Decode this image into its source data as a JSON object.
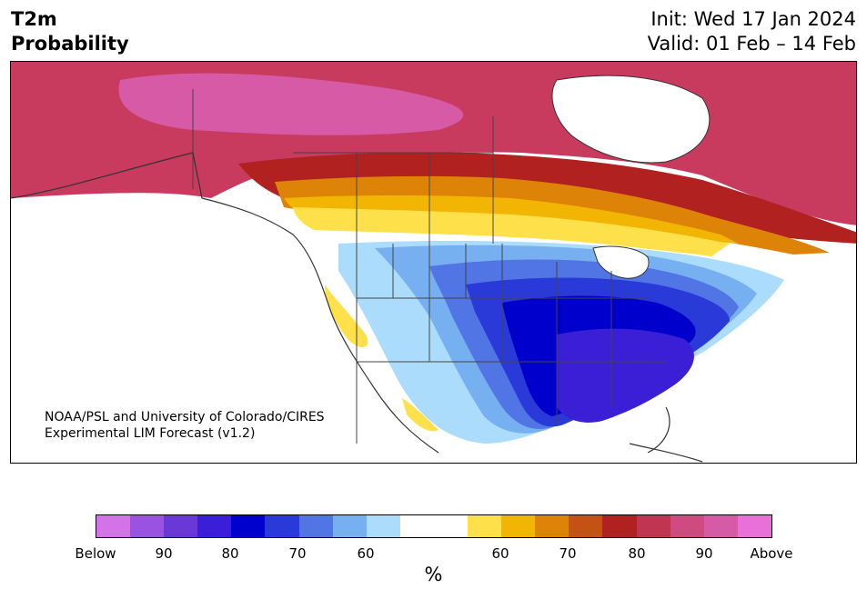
{
  "header": {
    "title_line1": "T2m",
    "title_line2": "Probability",
    "init_text": "Init: Wed 17 Jan 2024",
    "valid_text": "Valid: 01 Feb – 14 Feb"
  },
  "map": {
    "credit_line1": "NOAA/PSL and University of Colorado/CIRES",
    "credit_line2": "Experimental LIM Forecast (v1.2)",
    "region": "North America"
  },
  "colorbar": {
    "colors": [
      "#d473e8",
      "#9a52e0",
      "#6b38d8",
      "#3a1fd6",
      "#0000cc",
      "#2a3ad8",
      "#5275e6",
      "#77b0f0",
      "#acdcfb",
      "#ffffff",
      "#ffffff",
      "#fde04a",
      "#f3b503",
      "#dd8307",
      "#c55114",
      "#b0211f",
      "#c13553",
      "#cf4a7f",
      "#d75aa7",
      "#e870d8"
    ],
    "tick_labels": [
      "Below",
      "90",
      "80",
      "70",
      "60",
      "60",
      "70",
      "80",
      "90",
      "Above"
    ],
    "units": "%"
  }
}
